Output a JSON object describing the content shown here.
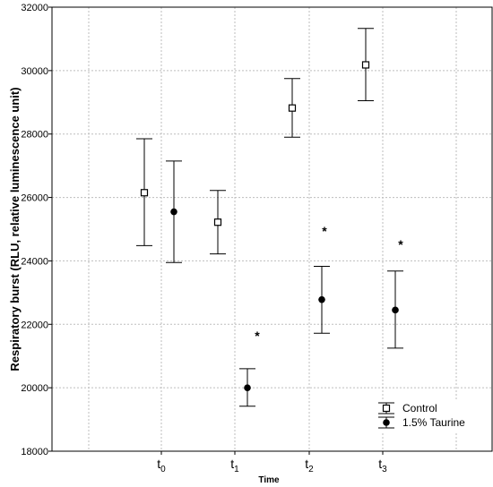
{
  "chart_data": {
    "type": "scatter",
    "xlabel": "Time",
    "ylabel": "Respiratory burst (RLU, relative luminescence unit)",
    "ylim": [
      18000,
      32000
    ],
    "yticks": [
      "18000",
      "20000",
      "22000",
      "24000",
      "26000",
      "28000",
      "30000",
      "32000"
    ],
    "categories": [
      {
        "base": "t",
        "sub": "0"
      },
      {
        "base": "t",
        "sub": "1"
      },
      {
        "base": "t",
        "sub": "2"
      },
      {
        "base": "t",
        "sub": "3"
      }
    ],
    "grid": true,
    "legend_position": "bottom-right",
    "series": [
      {
        "name": "Control",
        "marker": "open-square",
        "values": [
          26150,
          25220,
          28820,
          30180
        ],
        "err_low": [
          24480,
          24220,
          27900,
          29050
        ],
        "err_high": [
          27850,
          26220,
          29750,
          31330
        ]
      },
      {
        "name": "1.5% Taurine",
        "marker": "filled-circle",
        "values": [
          25550,
          20000,
          22780,
          22450
        ],
        "err_low": [
          23950,
          19420,
          21720,
          21250
        ],
        "err_high": [
          27150,
          20600,
          23830,
          23680
        ]
      }
    ],
    "annotations": [
      {
        "text": "*",
        "category_index": 1
      },
      {
        "text": "*",
        "category_index": 2
      },
      {
        "text": "*",
        "category_index": 3
      }
    ]
  }
}
